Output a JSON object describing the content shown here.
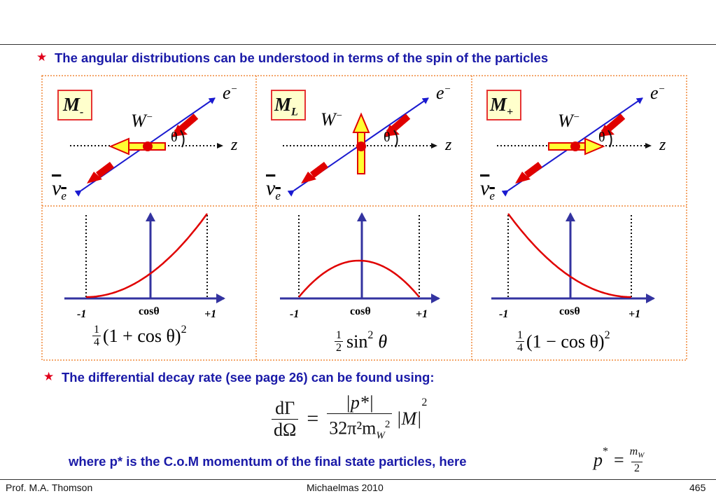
{
  "header": {
    "bullet_icon": "red-star",
    "line1": "The angular distributions can be understood in terms of the spin of the particles",
    "line2": "The differential decay rate (see page 26) can be found using:",
    "line3": "where p* is the C.o.M momentum of the final state particles, here"
  },
  "panels": [
    {
      "label": "M",
      "label_sub": "-",
      "boson": "W",
      "boson_sup": "−",
      "lepton": "e",
      "lepton_sup": "−",
      "neutrino": "ν",
      "neutrino_sub": "e",
      "angle": "θ",
      "axis": "z",
      "formula": {
        "frac_num": "1",
        "frac_den": "4",
        "body": "(1 + cos θ)",
        "sup": "2"
      }
    },
    {
      "label": "M",
      "label_sub": "L",
      "boson": "W",
      "boson_sup": "−",
      "lepton": "e",
      "lepton_sup": "−",
      "neutrino": "ν",
      "neutrino_sub": "e",
      "angle": "θ",
      "axis": "z",
      "formula": {
        "frac_num": "1",
        "frac_den": "2",
        "body": "sin",
        "sup": "2",
        "tail": "θ"
      }
    },
    {
      "label": "M",
      "label_sub": "+",
      "boson": "W",
      "boson_sup": "−",
      "lepton": "e",
      "lepton_sup": "−",
      "neutrino": "ν",
      "neutrino_sub": "e",
      "angle": "θ",
      "axis": "z",
      "formula": {
        "frac_num": "1",
        "frac_den": "4",
        "body": "(1 − cos θ)",
        "sup": "2"
      }
    }
  ],
  "plot_axes": {
    "left": "-1",
    "center": "cosθ",
    "right": "+1"
  },
  "equation": {
    "lhs_num": "dΓ",
    "lhs_den": "dΩ",
    "eq": "=",
    "rhs_num": "|p*|",
    "rhs_den": "32π²m",
    "rhs_den_sub": "W",
    "rhs_den_sup": "2",
    "tail": "|M|",
    "tail_sup": "2"
  },
  "pstar": {
    "lhs": "p",
    "lhs_sup": "*",
    "eq": "=",
    "num": "m",
    "num_sub": "W",
    "den": "2"
  },
  "footer": {
    "author": "Prof. M.A. Thomson",
    "event": "Michaelmas 2010",
    "page": "465"
  }
}
